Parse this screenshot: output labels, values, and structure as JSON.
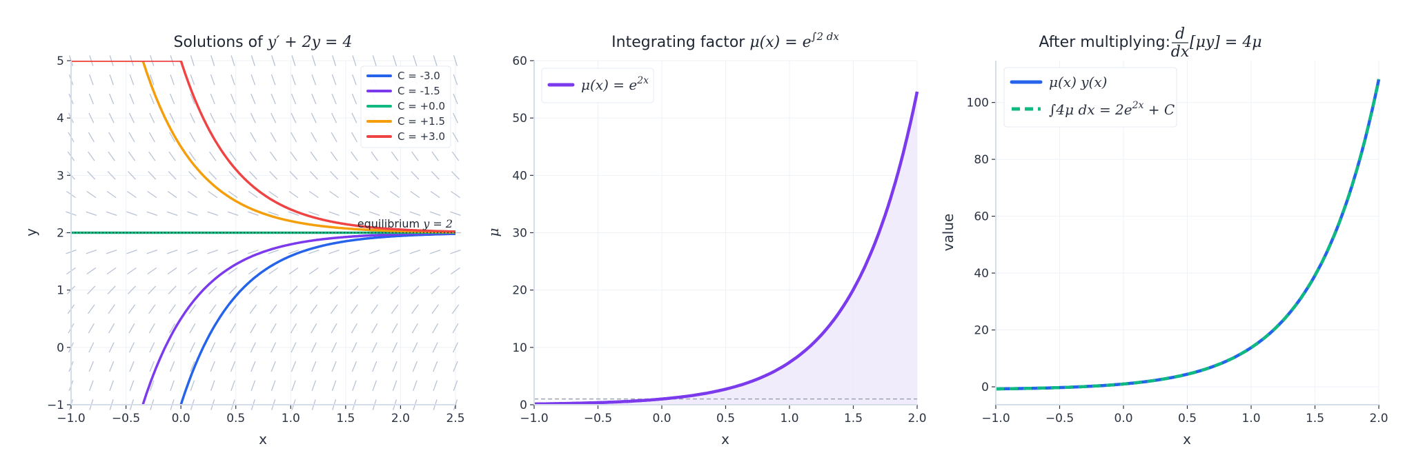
{
  "colors": {
    "blue": "#2563eb",
    "purple": "#7c3aed",
    "green": "#10b981",
    "orange": "#f59e0b",
    "red": "#ef4444",
    "slope": "#b8c2d4",
    "grid": "#eef2f7",
    "spine": "#d5dde8",
    "dashed_ref": "#9aa3b5",
    "fill": "#ede7fb"
  },
  "chart_data": [
    {
      "type": "line",
      "title": {
        "text": "Solutions of ",
        "math": "y′ + 2y = 4"
      },
      "xlabel": "x",
      "ylabel": "y",
      "xlim": [
        -1,
        2.5
      ],
      "ylim": [
        -1,
        5
      ],
      "xticks": [
        "−1.0",
        "−0.5",
        "0.0",
        "0.5",
        "1.0",
        "1.5",
        "2.0",
        "2.5"
      ],
      "yticks": [
        "−1",
        "0",
        "1",
        "2",
        "3",
        "4",
        "5"
      ],
      "grid": true,
      "slope_field": {
        "equation": "y' = 4 - 2y",
        "columns": 20,
        "rows": 19
      },
      "formula": "y = 2 + C·e^(−2x)",
      "series": [
        {
          "name": "C = -3.0",
          "C": -3.0,
          "color_key": "blue"
        },
        {
          "name": "C = -1.5",
          "C": -1.5,
          "color_key": "purple"
        },
        {
          "name": "C = +0.0",
          "C": 0.0,
          "color_key": "green"
        },
        {
          "name": "C = +1.5",
          "C": 1.5,
          "color_key": "orange"
        },
        {
          "name": "C = +3.0",
          "C": 3.0,
          "color_key": "red"
        }
      ],
      "annotation": {
        "text": "equilibrium ",
        "math": "y = 2",
        "y": 2
      },
      "legend": "top-right"
    },
    {
      "type": "area",
      "title": {
        "text": "Integrating factor ",
        "math": "μ(x) = e",
        "sup": "∫2 dx"
      },
      "xlabel": "x",
      "ylabel": "μ",
      "xlim": [
        -1,
        2
      ],
      "ylim": [
        0,
        60
      ],
      "xticks": [
        "−1.0",
        "−0.5",
        "0.0",
        "0.5",
        "1.0",
        "1.5",
        "2.0"
      ],
      "yticks": [
        "0",
        "10",
        "20",
        "30",
        "40",
        "50",
        "60"
      ],
      "grid": true,
      "series": [
        {
          "name": "μ(x) = e",
          "name_sup": "2x",
          "formula": "e^(2x)",
          "color_key": "purple",
          "filled": true
        }
      ],
      "reference_line": {
        "y": 1,
        "style": "dashed"
      },
      "legend": "top-left"
    },
    {
      "type": "line",
      "title": {
        "text": "After multiplying: ",
        "frac_num": "d",
        "frac_den": "dx",
        "math": "[μy] = 4μ"
      },
      "xlabel": "x",
      "ylabel": "value",
      "xlim": [
        -1,
        2
      ],
      "ylim": [
        -6.3,
        114.7
      ],
      "xticks": [
        "−1.0",
        "−0.5",
        "0.0",
        "0.5",
        "1.0",
        "1.5",
        "2.0"
      ],
      "yticks": [
        "0",
        "20",
        "40",
        "60",
        "80",
        "100"
      ],
      "grid": true,
      "series": [
        {
          "name": "μ(x) y(x)",
          "formula": "2e^(2x) − 1",
          "color_key": "blue",
          "style": "solid"
        },
        {
          "name": "∫4μ dx = 2e",
          "name_sup": "2x",
          "name_tail": " + C",
          "formula": "2e^(2x) − 1",
          "color_key": "green",
          "style": "dashed"
        }
      ],
      "legend": "top-left"
    }
  ]
}
